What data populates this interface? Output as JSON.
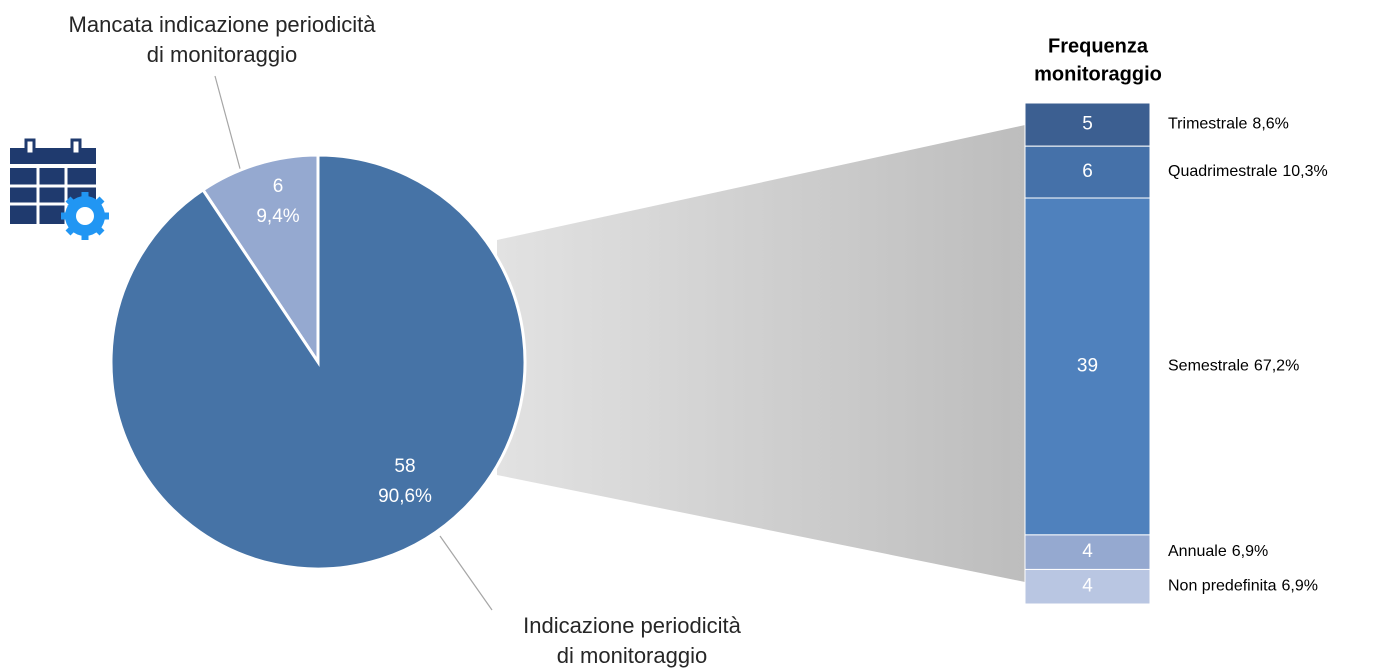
{
  "chart_data": {
    "type": "pie",
    "pie": {
      "labels": [
        [
          "Mancata indicazione periodicità",
          "di monitoraggio"
        ],
        [
          "Indicazione periodicità",
          "di monitoraggio"
        ]
      ],
      "values": [
        6,
        58
      ],
      "percents": [
        9.4,
        90.6
      ],
      "percent_labels": [
        "9,4%",
        "90,6%"
      ],
      "colors": [
        "#95a9d0",
        "#4673a6"
      ]
    },
    "bar": {
      "title": [
        "Frequenza",
        "monitoraggio"
      ],
      "categories": [
        "Trimestrale",
        "Quadrimestrale",
        "Semestrale",
        "Annuale",
        "Non predefinita"
      ],
      "values": [
        5,
        6,
        39,
        4,
        4
      ],
      "percents": [
        8.6,
        10.3,
        67.2,
        6.9,
        6.9
      ],
      "percent_labels": [
        "8,6%",
        "10,3%",
        "67,2%",
        "6,9%",
        "6,9%"
      ],
      "colors": [
        "#3c5f91",
        "#4571a9",
        "#4f81bd",
        "#95a9d0",
        "#b9c6e2"
      ]
    }
  }
}
